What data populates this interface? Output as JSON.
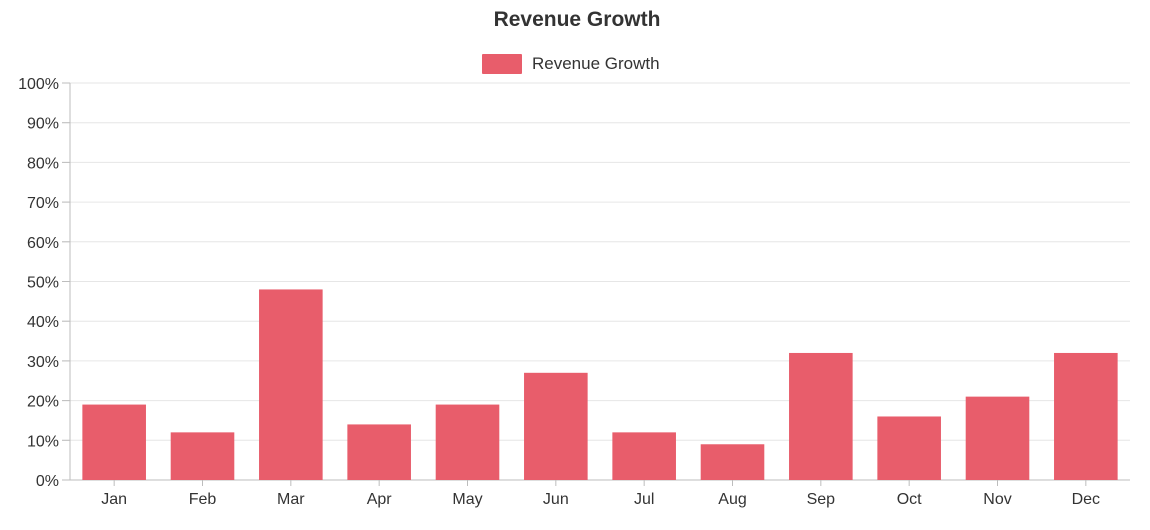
{
  "chart_data": {
    "type": "bar",
    "title": "Revenue Growth",
    "categories": [
      "Jan",
      "Feb",
      "Mar",
      "Apr",
      "May",
      "Jun",
      "Jul",
      "Aug",
      "Sep",
      "Oct",
      "Nov",
      "Dec"
    ],
    "series": [
      {
        "name": "Revenue Growth",
        "values": [
          19,
          12,
          48,
          14,
          19,
          27,
          12,
          9,
          32,
          16,
          21,
          32
        ],
        "color": "#e85d6b"
      }
    ],
    "y_ticks": [
      "0%",
      "10%",
      "20%",
      "30%",
      "40%",
      "50%",
      "60%",
      "70%",
      "80%",
      "90%",
      "100%"
    ],
    "ylim": [
      0,
      100
    ],
    "y_unit": "%",
    "grid": true,
    "legend_position": "top-center"
  }
}
